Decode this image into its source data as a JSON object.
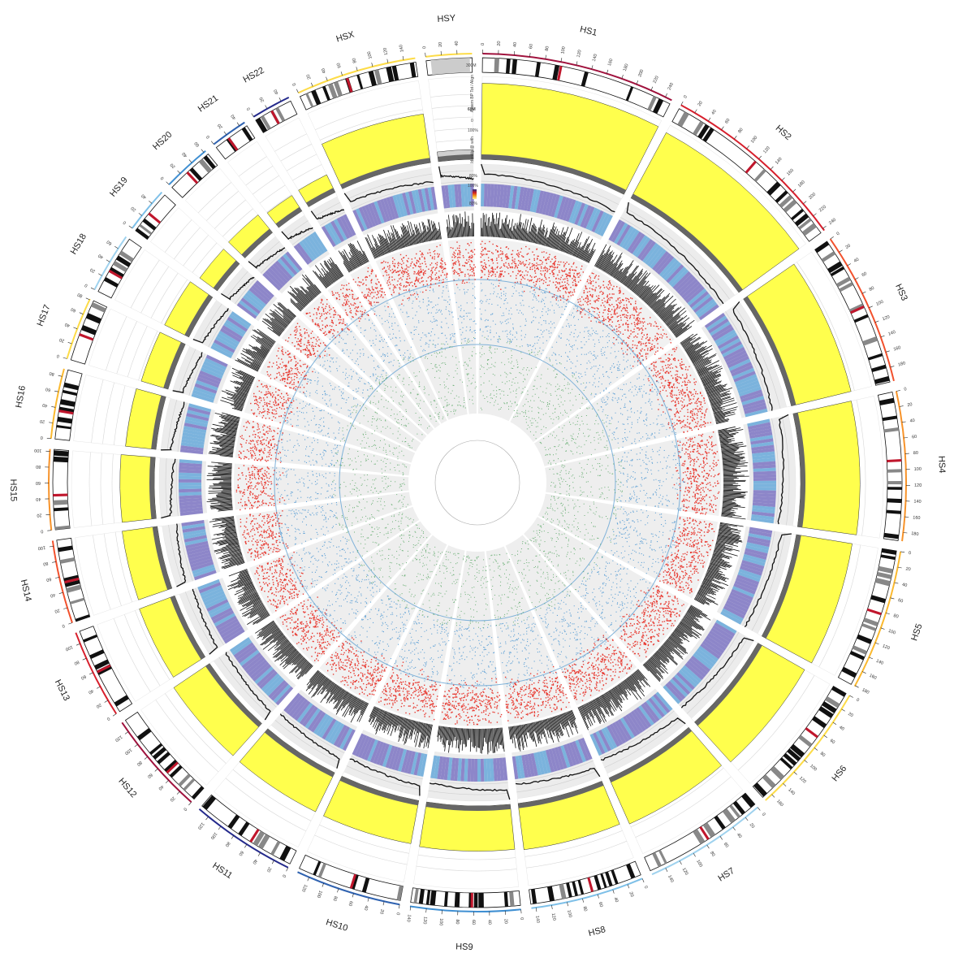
{
  "chromosomes": [
    {
      "name": "HS1",
      "size": 249,
      "color": "#a0123d",
      "ticks": [
        "0",
        "20",
        "40",
        "60",
        "80",
        "100",
        "120",
        "140",
        "160",
        "180",
        "200",
        "220",
        "240"
      ]
    },
    {
      "name": "HS2",
      "size": 243,
      "color": "#d71f2c",
      "ticks": [
        "0",
        "20",
        "40",
        "60",
        "80",
        "100",
        "120",
        "140",
        "160",
        "180",
        "200",
        "220",
        "240"
      ]
    },
    {
      "name": "HS3",
      "size": 198,
      "color": "#f2512d",
      "ticks": [
        "0",
        "20",
        "40",
        "60",
        "80",
        "100",
        "120",
        "140",
        "160",
        "180"
      ]
    },
    {
      "name": "HS4",
      "size": 191,
      "color": "#f7932a",
      "ticks": [
        "0",
        "20",
        "40",
        "60",
        "80",
        "100",
        "120",
        "140",
        "160",
        "180"
      ]
    },
    {
      "name": "HS5",
      "size": 181,
      "color": "#fbb92f",
      "ticks": [
        "0",
        "20",
        "40",
        "60",
        "80",
        "100",
        "120",
        "140",
        "160",
        "180"
      ]
    },
    {
      "name": "HS6",
      "size": 171,
      "color": "#fddc48",
      "ticks": [
        "0",
        "20",
        "40",
        "60",
        "80",
        "100",
        "120",
        "140",
        "160"
      ]
    },
    {
      "name": "HS7",
      "size": 159,
      "color": "#9fd2ee",
      "ticks": [
        "0",
        "20",
        "40",
        "60",
        "80",
        "100",
        "120",
        "140"
      ]
    },
    {
      "name": "HS8",
      "size": 146,
      "color": "#7ec0e8",
      "ticks": [
        "0",
        "20",
        "40",
        "60",
        "80",
        "100",
        "120",
        "140"
      ]
    },
    {
      "name": "HS9",
      "size": 141,
      "color": "#3f8fd2",
      "ticks": [
        "0",
        "20",
        "40",
        "60",
        "80",
        "100",
        "120",
        "140"
      ]
    },
    {
      "name": "HS10",
      "size": 136,
      "color": "#2f62b0",
      "ticks": [
        "0",
        "20",
        "40",
        "60",
        "80",
        "100",
        "120"
      ]
    },
    {
      "name": "HS11",
      "size": 135,
      "color": "#242a8c",
      "ticks": [
        "0",
        "20",
        "40",
        "60",
        "80",
        "100",
        "120"
      ]
    },
    {
      "name": "HS12",
      "size": 134,
      "color": "#a0123d",
      "ticks": [
        "0",
        "20",
        "40",
        "60",
        "80",
        "100",
        "120"
      ]
    },
    {
      "name": "HS13",
      "size": 115,
      "color": "#d71f2c",
      "ticks": [
        "0",
        "20",
        "40",
        "60",
        "80",
        "100"
      ]
    },
    {
      "name": "HS14",
      "size": 107,
      "color": "#f2512d",
      "ticks": [
        "0",
        "20",
        "40",
        "60",
        "80",
        "100"
      ]
    },
    {
      "name": "HS15",
      "size": 103,
      "color": "#f7932a",
      "ticks": [
        "0",
        "20",
        "40",
        "60",
        "80",
        "100"
      ]
    },
    {
      "name": "HS16",
      "size": 90,
      "color": "#fbb92f",
      "ticks": [
        "0",
        "20",
        "40",
        "60",
        "80"
      ]
    },
    {
      "name": "HS17",
      "size": 81,
      "color": "#fddc48",
      "ticks": [
        "0",
        "20",
        "40",
        "60",
        "80"
      ]
    },
    {
      "name": "HS18",
      "size": 78,
      "color": "#9fd2ee",
      "ticks": [
        "0",
        "20",
        "40",
        "60"
      ]
    },
    {
      "name": "HS19",
      "size": 59,
      "color": "#7ec0e8",
      "ticks": [
        "0",
        "20",
        "40"
      ]
    },
    {
      "name": "HS20",
      "size": 63,
      "color": "#3f8fd2",
      "ticks": [
        "0",
        "20",
        "40",
        "60"
      ]
    },
    {
      "name": "HS21",
      "size": 48,
      "color": "#2f62b0",
      "ticks": [
        "0",
        "20",
        "40"
      ]
    },
    {
      "name": "HS22",
      "size": 51,
      "color": "#242a8c",
      "ticks": [
        "0",
        "20",
        "40"
      ]
    },
    {
      "name": "HSX",
      "size": 155,
      "color": "#fddc48",
      "ticks": [
        "0",
        "20",
        "40",
        "60",
        "80",
        "100",
        "120",
        "140"
      ]
    },
    {
      "name": "HSY",
      "size": 59,
      "color": "#fddc48",
      "ticks": [
        "0",
        "20",
        "40"
      ]
    }
  ],
  "track_labels": {
    "scale_top": "300M",
    "scale_mid": "60M",
    "scale_zero": "0",
    "bp_track": "Assem BP Tot / Align",
    "pct_top": "100%",
    "pct_mid": "80%",
    "identity_track": "Identity @ with",
    "heat_top": "100%",
    "heat_mid": "80%"
  },
  "colors": {
    "ideogram_band": "#111111",
    "centromere": "#c0162c",
    "aligned_fill": "#ffff4d",
    "aligned_rest": "#666666",
    "track_bg": "#ececec",
    "line": "#111111",
    "heat_purple": "#8d86c9",
    "heat_blue": "#7bb3dd",
    "histogram": "#111111",
    "scatter_red": "#e83b32",
    "scatter_blue": "#3d8fd0",
    "scatter_green": "#3c9a4b",
    "ring_line": "#7fb2d9"
  }
}
